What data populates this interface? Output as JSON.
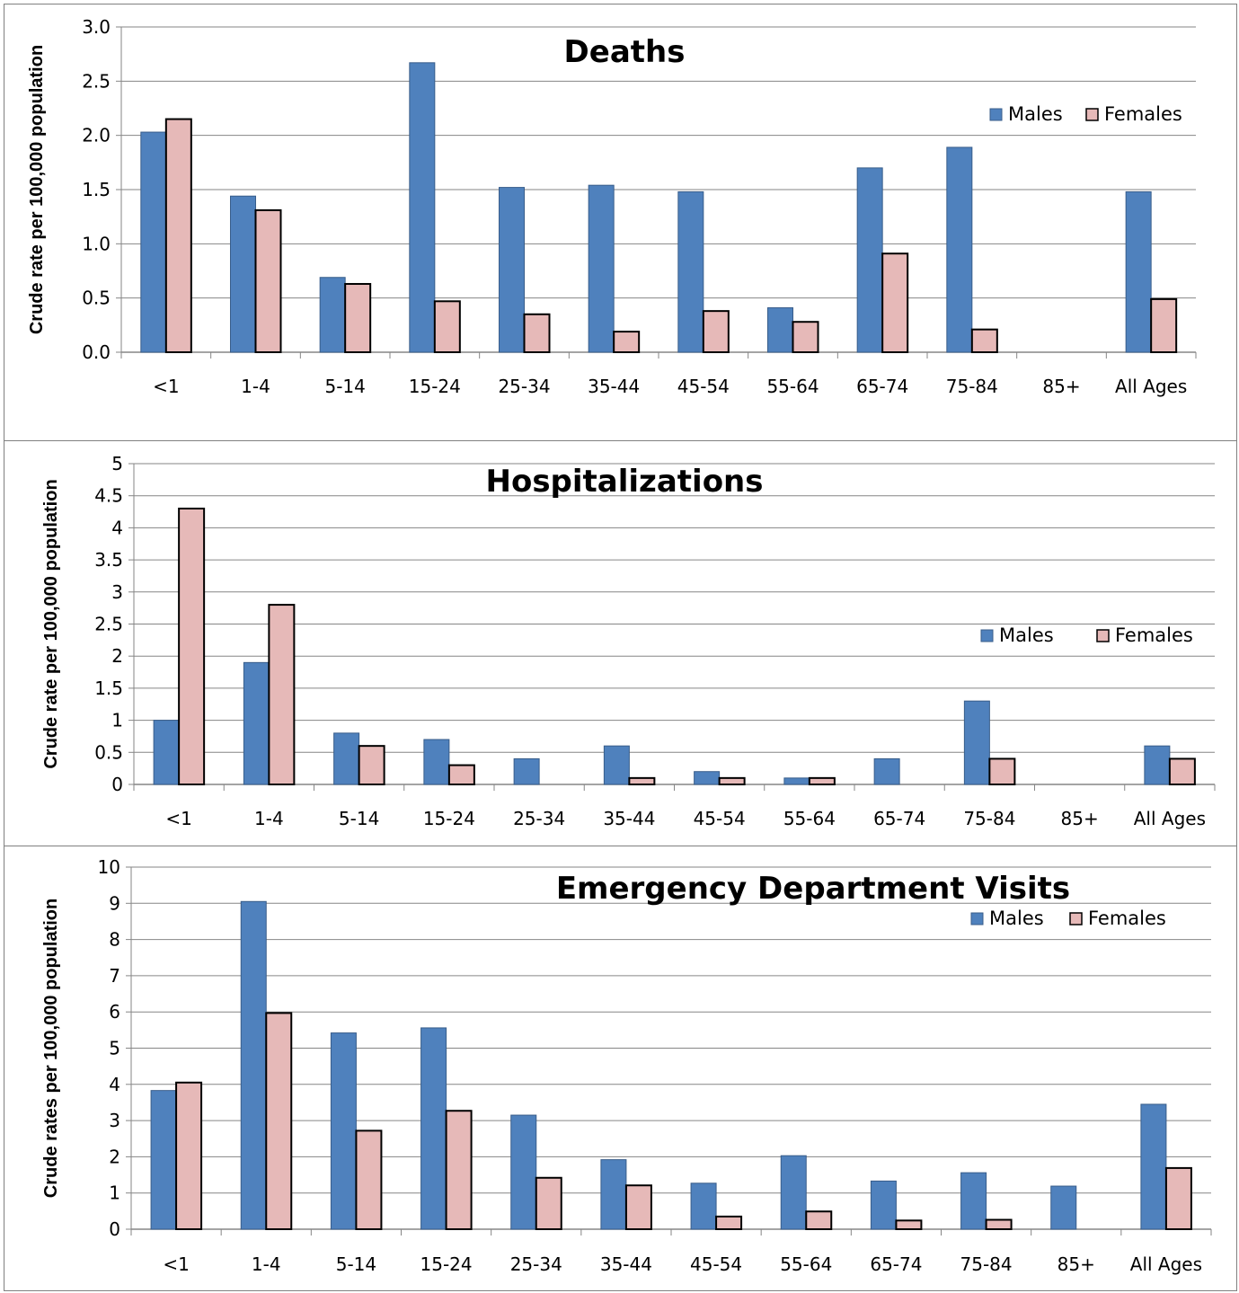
{
  "colors": {
    "males": "#4F81BD",
    "females": "#E6B9B8",
    "grid": "#868686",
    "axis": "#868686"
  },
  "chart_data": [
    {
      "type": "bar",
      "title": "Deaths",
      "ylabel": "Crude rate per 100,000 population",
      "ylim": [
        0,
        3.0
      ],
      "yticks": [
        "0.0",
        "0.5",
        "1.0",
        "1.5",
        "2.0",
        "2.5",
        "3.0"
      ],
      "categories": [
        "<1",
        "1-4",
        "5-14",
        "15-24",
        "25-34",
        "35-44",
        "45-54",
        "55-64",
        "65-74",
        "75-84",
        "85+",
        "All Ages"
      ],
      "series": [
        {
          "name": "Males",
          "values": [
            2.03,
            1.44,
            0.69,
            2.67,
            1.52,
            1.54,
            1.48,
            0.41,
            1.7,
            1.89,
            0,
            1.48
          ]
        },
        {
          "name": "Females",
          "values": [
            2.15,
            1.31,
            0.63,
            0.47,
            0.35,
            0.19,
            0.38,
            0.28,
            0.91,
            0.21,
            0,
            0.49
          ]
        }
      ],
      "grid": true,
      "legend": "top-right"
    },
    {
      "type": "bar",
      "title": "Hospitalizations",
      "ylabel": "Crude rate per 100,000 population",
      "ylim": [
        0,
        5
      ],
      "yticks": [
        "0",
        "0.5",
        "1",
        "1.5",
        "2",
        "2.5",
        "3",
        "3.5",
        "4",
        "4.5",
        "5"
      ],
      "categories": [
        "<1",
        "1-4",
        "5-14",
        "15-24",
        "25-34",
        "35-44",
        "45-54",
        "55-64",
        "65-74",
        "75-84",
        "85+",
        "All Ages"
      ],
      "series": [
        {
          "name": "Males",
          "values": [
            1.0,
            1.9,
            0.8,
            0.7,
            0.4,
            0.6,
            0.2,
            0.1,
            0.4,
            1.3,
            0,
            0.6
          ]
        },
        {
          "name": "Females",
          "values": [
            4.3,
            2.8,
            0.6,
            0.3,
            0,
            0.1,
            0.1,
            0.1,
            0,
            0.4,
            0,
            0.4
          ]
        }
      ],
      "grid": true,
      "legend": "right"
    },
    {
      "type": "bar",
      "title": "Emergency Department Visits",
      "ylabel": "Crude rates per 100,000 population",
      "ylim": [
        0,
        10
      ],
      "yticks": [
        "0",
        "1",
        "2",
        "3",
        "4",
        "5",
        "6",
        "7",
        "8",
        "9",
        "10"
      ],
      "categories": [
        "<1",
        "1-4",
        "5-14",
        "15-24",
        "25-34",
        "35-44",
        "45-54",
        "55-64",
        "65-74",
        "75-84",
        "85+",
        "All Ages"
      ],
      "series": [
        {
          "name": "Males",
          "values": [
            3.83,
            9.05,
            5.42,
            5.56,
            3.15,
            1.92,
            1.27,
            2.03,
            1.33,
            1.56,
            1.19,
            3.45
          ]
        },
        {
          "name": "Females",
          "values": [
            4.05,
            5.97,
            2.72,
            3.27,
            1.42,
            1.21,
            0.35,
            0.49,
            0.24,
            0.26,
            0,
            1.69
          ]
        }
      ],
      "grid": true,
      "legend": "top-right"
    }
  ]
}
